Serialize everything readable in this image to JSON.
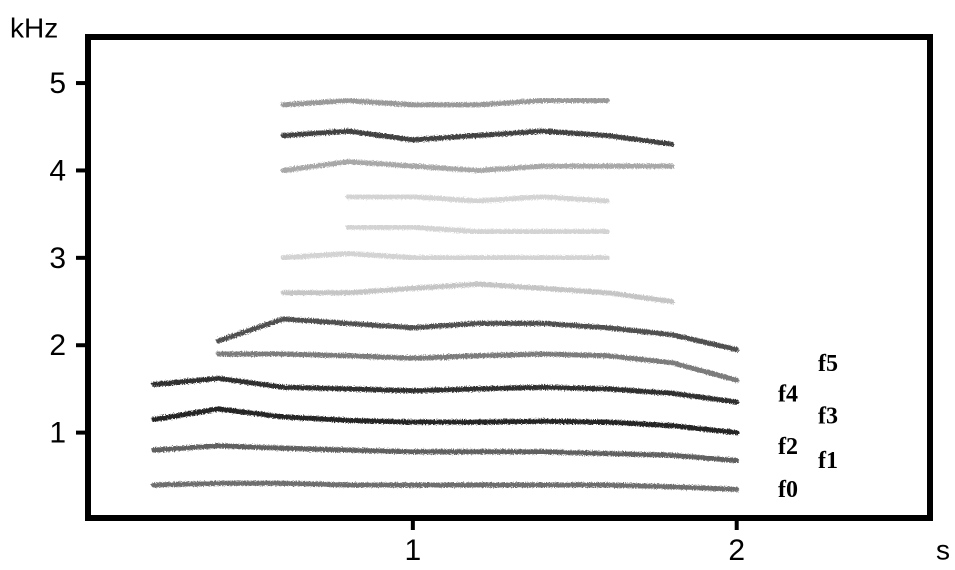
{
  "chart_data": {
    "type": "line",
    "y_label": "kHz",
    "x_label": "s",
    "xlim": [
      0,
      2.6
    ],
    "ylim": [
      0,
      5.55
    ],
    "xticks": [
      1,
      2
    ],
    "yticks": [
      1,
      2,
      3,
      4,
      5
    ],
    "x": [
      0.2,
      0.4,
      0.6,
      0.8,
      1.0,
      1.2,
      1.4,
      1.6,
      1.8,
      2.0
    ],
    "series": [
      {
        "name": "f0",
        "color": "#555555",
        "values": [
          0.4,
          0.42,
          0.42,
          0.4,
          0.4,
          0.4,
          0.4,
          0.4,
          0.38,
          0.35
        ]
      },
      {
        "name": "f1",
        "color": "#444444",
        "values": [
          0.8,
          0.85,
          0.82,
          0.8,
          0.78,
          0.78,
          0.78,
          0.76,
          0.74,
          0.68
        ]
      },
      {
        "name": "f2",
        "color": "#000000",
        "values": [
          1.15,
          1.27,
          1.18,
          1.14,
          1.12,
          1.12,
          1.13,
          1.12,
          1.08,
          1.0
        ]
      },
      {
        "name": "f3",
        "color": "#111111",
        "values": [
          1.55,
          1.62,
          1.52,
          1.5,
          1.48,
          1.5,
          1.52,
          1.5,
          1.45,
          1.35
        ]
      },
      {
        "name": "f4",
        "color": "#666666",
        "values": [
          null,
          1.9,
          1.9,
          1.88,
          1.85,
          1.88,
          1.9,
          1.88,
          1.8,
          1.6
        ]
      },
      {
        "name": "f5",
        "color": "#333333",
        "values": [
          null,
          2.05,
          2.3,
          2.25,
          2.2,
          2.25,
          2.25,
          2.2,
          2.12,
          1.95
        ]
      },
      {
        "color": "#bbbbbb",
        "values": [
          null,
          null,
          2.6,
          2.6,
          2.65,
          2.7,
          2.65,
          2.6,
          2.5,
          null
        ]
      },
      {
        "color": "#cccccc",
        "values": [
          null,
          null,
          3.0,
          3.05,
          3.0,
          3.0,
          3.0,
          3.0,
          null,
          null
        ]
      },
      {
        "color": "#cccccc",
        "values": [
          null,
          null,
          null,
          3.35,
          3.35,
          3.3,
          3.3,
          3.3,
          null,
          null
        ]
      },
      {
        "color": "#cccccc",
        "values": [
          null,
          null,
          null,
          3.7,
          3.7,
          3.65,
          3.7,
          3.65,
          null,
          null
        ]
      },
      {
        "color": "#999999",
        "values": [
          null,
          null,
          4.0,
          4.1,
          4.05,
          4.0,
          4.05,
          4.05,
          4.05,
          null
        ]
      },
      {
        "color": "#222222",
        "values": [
          null,
          null,
          4.4,
          4.45,
          4.35,
          4.4,
          4.45,
          4.4,
          4.3,
          null
        ]
      },
      {
        "color": "#888888",
        "values": [
          null,
          null,
          4.75,
          4.8,
          4.75,
          4.75,
          4.8,
          4.8,
          null,
          null
        ]
      }
    ]
  }
}
